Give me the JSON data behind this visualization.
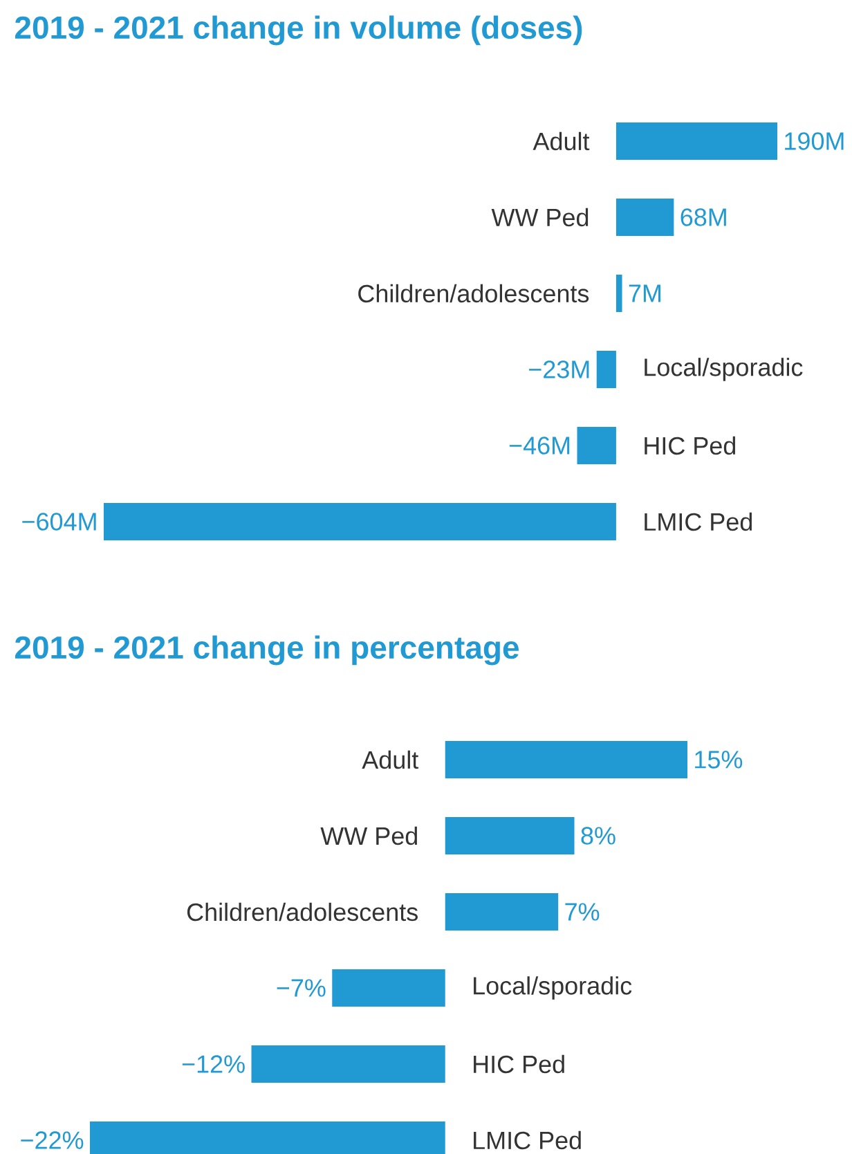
{
  "chart_data": [
    {
      "type": "bar",
      "orientation": "horizontal",
      "title": "2019 - 2021 change in volume (doses)",
      "categories": [
        "Adult",
        "WW Ped",
        "Children/adolescents",
        "Local/sporadic",
        "HIC Ped",
        "LMIC Ped"
      ],
      "values": [
        190,
        68,
        7,
        -23,
        -46,
        -604
      ],
      "value_labels": [
        "190M",
        "68M",
        "7M",
        "−23M",
        "−46M",
        "−604M"
      ],
      "color": "#2199d3"
    },
    {
      "type": "bar",
      "orientation": "horizontal",
      "title": "2019 - 2021 change in percentage",
      "categories": [
        "Adult",
        "WW Ped",
        "Children/adolescents",
        "Local/sporadic",
        "HIC Ped",
        "LMIC Ped"
      ],
      "values": [
        15,
        8,
        7,
        -7,
        -12,
        -22
      ],
      "value_labels": [
        "15%",
        "8%",
        "7%",
        "−7%",
        "−12%",
        "−22%"
      ],
      "color": "#2199d3"
    }
  ]
}
